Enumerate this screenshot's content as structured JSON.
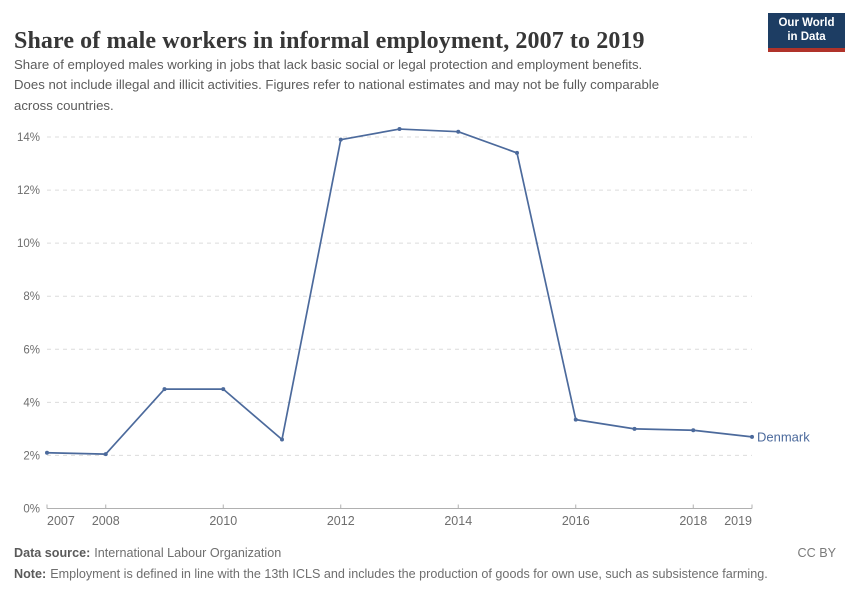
{
  "header": {
    "title": "Share of male workers in informal employment, 2007 to 2019",
    "subtitle_lines": [
      "Share of employed males working in jobs that lack basic social or legal protection and employment benefits.",
      "Does not include illegal and illicit activities. Figures refer to national estimates and may not be fully comparable",
      "across countries."
    ],
    "logo": {
      "line1": "Our World",
      "line2": "in Data",
      "bg_color": "#1d3d63",
      "accent_color": "#b0332a"
    }
  },
  "chart_data": {
    "type": "line",
    "title": "Share of male workers in informal employment, 2007 to 2019",
    "xlabel": "",
    "ylabel": "",
    "xlim": [
      2007,
      2019
    ],
    "ylim": [
      0,
      14
    ],
    "x_ticks": [
      2007,
      2008,
      2010,
      2012,
      2014,
      2016,
      2018,
      2019
    ],
    "y_ticks": [
      0,
      2,
      4,
      6,
      8,
      10,
      12,
      14
    ],
    "y_tick_suffix": "%",
    "grid": "horizontal-dashed",
    "legend_position": "end-of-line",
    "series": [
      {
        "name": "Denmark",
        "color": "#4c6a9c",
        "x": [
          2007,
          2008,
          2009,
          2010,
          2011,
          2012,
          2013,
          2014,
          2015,
          2016,
          2017,
          2018,
          2019
        ],
        "values": [
          2.1,
          2.05,
          4.5,
          4.5,
          2.6,
          13.9,
          14.3,
          14.2,
          13.4,
          3.35,
          3.0,
          2.95,
          2.7
        ]
      }
    ],
    "style": {
      "grid_color": "#dcdcdc",
      "axis_color": "#b0b0b0",
      "tick_label_color": "#6e6e6e"
    }
  },
  "footer": {
    "datasource_label": "Data source:",
    "datasource_value": "International Labour Organization",
    "note_label": "Note:",
    "note_value": "Employment is defined in line with the 13th ICLS and includes the production of goods for own use, such as subsistence farming.",
    "license": "CC BY"
  }
}
